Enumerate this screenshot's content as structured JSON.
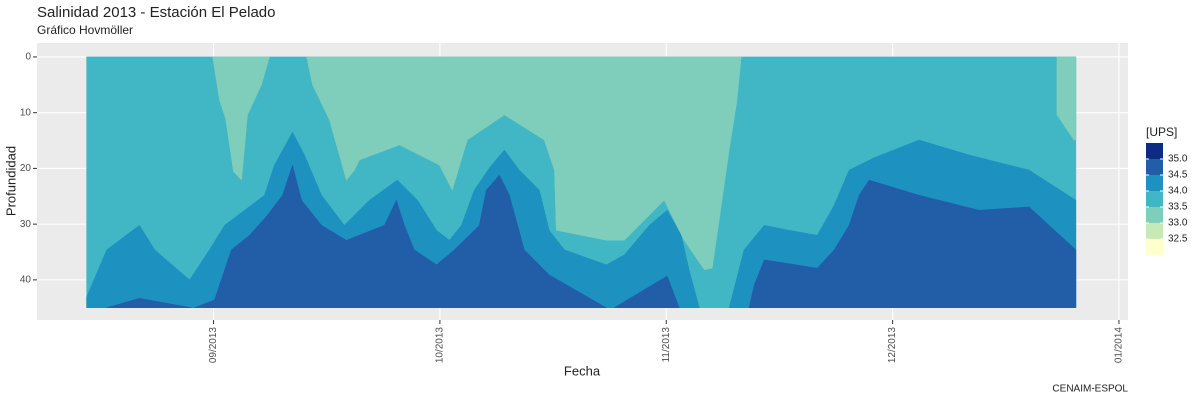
{
  "chart_data": {
    "type": "contour",
    "title": "Salinidad 2013 - Estación El Pelado",
    "subtitle": "Gráfico Hovmöller",
    "xlabel": "Fecha",
    "ylabel": "Profundidad",
    "caption": "CENAIM-ESPOL",
    "xlim": [
      8.22,
      13.04
    ],
    "xticks": [
      {
        "value": 9,
        "label": "09/2013"
      },
      {
        "value": 10,
        "label": "10/2013"
      },
      {
        "value": 11,
        "label": "11/2013"
      },
      {
        "value": 12,
        "label": "12/2013"
      },
      {
        "value": 13,
        "label": "01/2014"
      }
    ],
    "ylim": [
      -2.5,
      47.2
    ],
    "y_reversed": true,
    "yticks": [
      0,
      10,
      20,
      30,
      40
    ],
    "grid": true,
    "legend": {
      "title": "[UPS]",
      "position": "right",
      "colors": [
        "#0c2c84",
        "#225ea8",
        "#1d91c0",
        "#41b6c4",
        "#7fcdbb",
        "#c7e9b4",
        "#ffffcc"
      ],
      "labels": [
        {
          "value": 35,
          "label": "35.0"
        },
        34.5,
        {
          "value": 34,
          "label": "34.0"
        },
        33.5,
        {
          "value": 33,
          "label": "33.0"
        },
        32.5
      ]
    },
    "regions": [
      {
        "color": "#41b6c4",
        "x": [
          8.439,
          12.81,
          12.81,
          8.439
        ],
        "y": [
          0,
          0,
          45,
          45
        ]
      },
      {
        "color": "#7fcdbb",
        "x": [
          8.996,
          9.026,
          9.053,
          9.088,
          9.124,
          9.15,
          9.212,
          9.247
        ],
        "y": [
          0,
          7.7,
          11.0,
          20.6,
          22.1,
          10.4,
          5.0,
          0
        ]
      },
      {
        "color": "#7fcdbb",
        "x": [
          9.411,
          9.437,
          9.512,
          9.587,
          9.623,
          9.645,
          9.821,
          9.998,
          10.055,
          10.121,
          10.285,
          10.461,
          10.506,
          10.514,
          10.735,
          10.815,
          10.991,
          11.079,
          11.168,
          11.203,
          11.234,
          11.278,
          11.313,
          11.331
        ],
        "y": [
          0,
          5.0,
          11.3,
          22.1,
          20.3,
          18.5,
          15.8,
          19.4,
          23.9,
          14.9,
          10.4,
          14.9,
          20.3,
          31.1,
          32.9,
          32.9,
          25.7,
          32.9,
          38.2,
          37.9,
          29.3,
          16.7,
          7.7,
          0
        ]
      },
      {
        "color": "#7fcdbb",
        "x": [
          12.726,
          12.726,
          12.801,
          12.81,
          12.81
        ],
        "y": [
          0,
          10.4,
          14.9,
          14.9,
          0
        ]
      },
      {
        "color": "#1d91c0",
        "x": [
          8.439,
          8.528,
          8.673,
          8.74,
          8.894,
          8.982,
          9.049,
          9.137,
          9.225,
          9.269,
          9.349,
          9.402,
          9.477,
          9.578,
          9.689,
          9.812,
          9.901,
          9.985,
          10.042,
          10.095,
          10.152,
          10.219,
          10.285,
          10.351,
          10.439,
          10.483,
          10.55,
          10.735,
          10.815,
          10.925,
          11.004,
          11.066,
          11.101,
          11.146,
          8.439
        ],
        "y": [
          43.1,
          34.6,
          30.2,
          34.6,
          40.0,
          34.6,
          30.2,
          27.5,
          24.8,
          19.4,
          13.5,
          17.6,
          24.8,
          30.2,
          25.7,
          22.1,
          25.7,
          31.1,
          32.9,
          30.2,
          23.9,
          19.9,
          16.7,
          20.3,
          23.9,
          31.1,
          34.6,
          37.3,
          35.5,
          30.2,
          27.5,
          32.0,
          38.2,
          45,
          45
        ]
      },
      {
        "color": "#1d91c0",
        "x": [
          11.278,
          11.344,
          11.433,
          11.543,
          11.667,
          11.742,
          11.808,
          11.918,
          12.117,
          12.338,
          12.603,
          12.81,
          12.81
        ],
        "y": [
          45,
          34.6,
          30.2,
          31.1,
          32.0,
          26.6,
          20.3,
          18.1,
          14.9,
          17.6,
          20.3,
          25.7,
          45
        ]
      },
      {
        "color": "#225ea8",
        "x": [
          8.528,
          8.673,
          8.903
        ],
        "y": [
          45,
          43.3,
          45
        ]
      },
      {
        "color": "#225ea8",
        "x": [
          8.916,
          9.004,
          9.079,
          9.159,
          9.238,
          9.305,
          9.349,
          9.389,
          9.477,
          9.587,
          9.755,
          9.808,
          9.843,
          9.887,
          9.985,
          10.064,
          10.174,
          10.205,
          10.263,
          10.307,
          10.373,
          10.483,
          10.735
        ],
        "y": [
          45,
          43.6,
          34.6,
          32.0,
          28.4,
          24.8,
          19.4,
          25.7,
          30.2,
          32.9,
          30.2,
          25.7,
          30.2,
          34.6,
          37.3,
          34.6,
          30.2,
          23.9,
          21.2,
          24.8,
          34.6,
          39.1,
          45
        ]
      },
      {
        "color": "#225ea8",
        "x": [
          10.77,
          11.004,
          11.057
        ],
        "y": [
          45,
          39.3,
          45
        ]
      },
      {
        "color": "#225ea8",
        "x": [
          11.366,
          11.389,
          11.433,
          11.667,
          11.742,
          11.808,
          11.852,
          11.896,
          12.117,
          12.382,
          12.603,
          12.691,
          12.81,
          12.81
        ],
        "y": [
          45,
          40.9,
          36.4,
          37.9,
          34.6,
          30.2,
          24.8,
          22.1,
          24.8,
          27.5,
          26.9,
          30.2,
          34.6,
          45
        ]
      }
    ]
  }
}
